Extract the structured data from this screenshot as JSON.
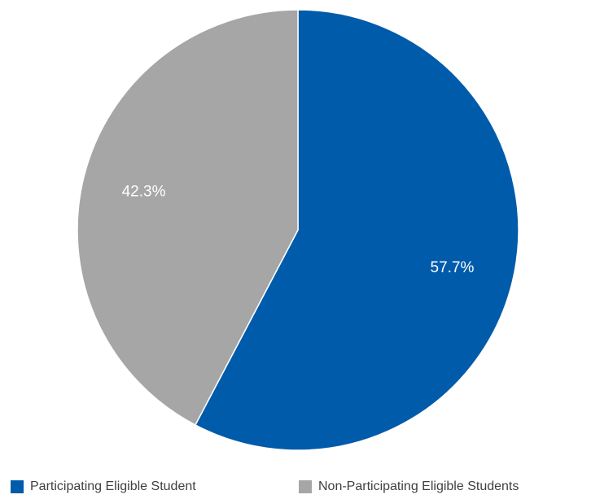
{
  "chart_data": {
    "type": "pie",
    "slices": [
      {
        "label": "Participating Eligible Student",
        "value": 57.7,
        "display": "57.7%",
        "color": "#005baa"
      },
      {
        "label": "Non-Participating Eligible Students",
        "value": 42.3,
        "display": "42.3%",
        "color": "#a6a6a6"
      }
    ],
    "start_angle": "12 o'clock",
    "direction": "clockwise",
    "legend_position": "bottom"
  }
}
